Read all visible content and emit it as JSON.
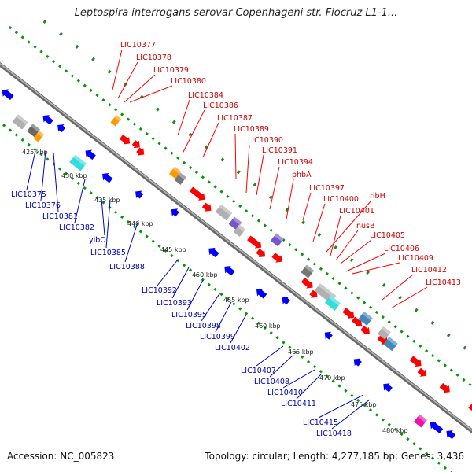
{
  "title": "Leptospira interrogans serovar Copenhageni str. Fiocruz L1-1...",
  "footer": {
    "accession": "Accession: NC_005823",
    "summary": "Topology: circular; Length: 4,277,185 bp; Genes: 3,436"
  },
  "colors": {
    "backbone": "#808080",
    "forward_gene": "#ff0000",
    "reverse_gene": "#0000ff",
    "forward_label": "#cc0000",
    "reverse_label": "#0000aa",
    "gc_dots": "#009900",
    "orange_feature": "#ff9900",
    "cyan_feature": "#33dddd",
    "purple_feature": "#7755cc",
    "steelblue_feature": "#4488bb",
    "magenta_feature": "#ee11aa",
    "gray_feature": "#b0b0b0"
  },
  "ruler": {
    "ticks": [
      "425 kbp",
      "430 kbp",
      "435 kbp",
      "440 kbp",
      "445 kbp",
      "450 kbp",
      "455 kbp",
      "460 kbp",
      "465 kbp",
      "470 kbp",
      "475 kbp",
      "480 kbp"
    ]
  },
  "forward_labels": [
    "LIC10377",
    "LIC10378",
    "LIC10379",
    "LIC10380",
    "LIC10384",
    "LIC10386",
    "LIC10387",
    "LIC10389",
    "LIC10390",
    "LIC10391",
    "LIC10394",
    "phbA",
    "LIC10397",
    "LIC10400",
    "ribH",
    "LIC10401",
    "nusB",
    "LIC10405",
    "LIC10406",
    "LIC10409",
    "LIC10412",
    "LIC10413"
  ],
  "reverse_labels": [
    "LIC10375",
    "LIC10376",
    "LIC10381",
    "LIC10382",
    "yibO",
    "LIC10385",
    "LIC10388",
    "LIC10392",
    "LIC10393",
    "LIC10395",
    "LIC10398",
    "LIC10399",
    "LIC10402",
    "LIC10407",
    "LIC10408",
    "LIC10410",
    "LIC10411",
    "LIC10415",
    "LIC10418"
  ]
}
